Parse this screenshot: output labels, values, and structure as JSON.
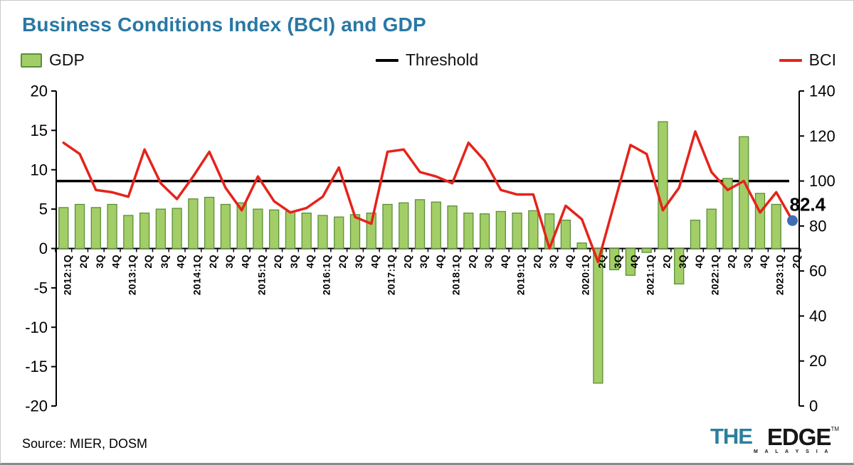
{
  "title": "Business Conditions Index (BCI) and GDP",
  "title_color": "#2878a4",
  "legend": [
    {
      "label": "GDP",
      "color": "#a3cd66",
      "border": "#5a8f3a",
      "type": "box"
    },
    {
      "label": "Threshold",
      "color": "#000000",
      "type": "line"
    },
    {
      "label": "BCI",
      "color": "#e5231b",
      "type": "line"
    }
  ],
  "annotation": {
    "label": "82.4",
    "color": "#29abe2",
    "dot_color": "#3f6cb5"
  },
  "source": "Source: MIER, DOSM",
  "logo": {
    "the": "THE",
    "edge": "EDGE",
    "malaysia": "M A L A Y S I A",
    "tm": "TM",
    "the_color": "#2b7f9e"
  },
  "chart_data": {
    "type": "bar+line",
    "categories": [
      "2012:1Q",
      "2Q",
      "3Q",
      "4Q",
      "2013:1Q",
      "2Q",
      "3Q",
      "4Q",
      "2014:1Q",
      "2Q",
      "3Q",
      "4Q",
      "2015:1Q",
      "2Q",
      "3Q",
      "4Q",
      "2016:1Q",
      "2Q",
      "3Q",
      "4Q",
      "2017:1Q",
      "2Q",
      "3Q",
      "4Q",
      "2018:1Q",
      "2Q",
      "3Q",
      "4Q",
      "2019:1Q",
      "2Q",
      "3Q",
      "4Q",
      "2020:1Q",
      "2Q",
      "3Q",
      "4Q",
      "2021:1Q",
      "2Q",
      "3Q",
      "4Q",
      "2022:1Q",
      "2Q",
      "3Q",
      "4Q",
      "2023:1Q",
      "2Q"
    ],
    "series": [
      {
        "name": "GDP",
        "type": "bar",
        "axis": "left",
        "color": "#a3cd66",
        "border": "#5a8f3a",
        "values": [
          5.2,
          5.6,
          5.2,
          5.6,
          4.2,
          4.5,
          5.0,
          5.1,
          6.3,
          6.5,
          5.6,
          5.8,
          5.0,
          4.9,
          4.7,
          4.5,
          4.2,
          4.0,
          4.3,
          4.5,
          5.6,
          5.8,
          6.2,
          5.9,
          5.4,
          4.5,
          4.4,
          4.7,
          4.5,
          4.8,
          4.4,
          3.6,
          0.7,
          -17.1,
          -2.7,
          -3.4,
          -0.5,
          16.1,
          -4.5,
          3.6,
          5.0,
          8.9,
          14.2,
          7.0,
          5.6,
          null
        ]
      },
      {
        "name": "BCI",
        "type": "line",
        "axis": "right",
        "color": "#e5231b",
        "values": [
          117,
          112,
          96,
          95,
          93,
          114,
          99,
          92,
          102,
          113,
          97,
          87,
          102,
          91,
          86,
          88,
          93,
          106,
          84,
          81,
          113,
          114,
          104,
          102,
          99,
          117,
          109,
          96,
          94,
          94,
          70,
          89,
          83,
          64,
          90,
          116,
          112,
          87,
          97,
          122,
          104,
          96,
          100,
          86,
          95,
          82.4
        ]
      },
      {
        "name": "Threshold",
        "type": "hline",
        "axis": "right",
        "color": "#000000",
        "value": 100
      }
    ],
    "left_axis": {
      "min": -20,
      "max": 20,
      "step": 5,
      "ticks": [
        "20",
        "15",
        "10",
        "5",
        "0",
        "-5",
        "-10",
        "-15",
        "-20"
      ]
    },
    "right_axis": {
      "min": 0,
      "max": 140,
      "step": 20,
      "ticks": [
        "140",
        "120",
        "100",
        "80",
        "60",
        "40",
        "20",
        "0"
      ]
    },
    "grid": false,
    "legend_position": "top",
    "last_point_label": "82.4"
  }
}
